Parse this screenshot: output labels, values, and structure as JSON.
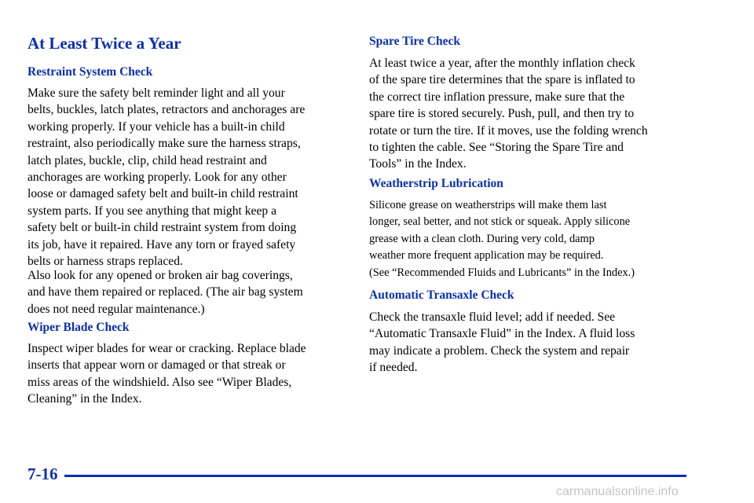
{
  "page_title": "At Least Twice a Year",
  "sections": {
    "restraint": {
      "heading": "Restraint System Check",
      "para1": [
        "Make sure the safety belt reminder light and all your",
        "belts, buckles, latch plates, retractors and anchorages are",
        "working properly. If your vehicle has a built-in child",
        "restraint, also periodically make sure the harness straps,",
        "latch plates, buckle, clip, child head restraint and",
        "anchorages are working properly. Look for any other",
        "loose or damaged safety belt and built-in child restraint",
        "system parts. If you see anything that might keep a",
        "safety belt or built-in child restraint system from doing",
        "its job, have it repaired. Have any torn or frayed safety",
        "belts or harness straps replaced."
      ],
      "para2": [
        "Also look for any opened or broken air bag coverings,",
        "and have them repaired or replaced. (The air bag system",
        "does not need regular maintenance.)"
      ]
    },
    "wiper": {
      "heading": "Wiper Blade Check",
      "para": [
        "Inspect wiper blades for wear or cracking. Replace blade",
        "inserts that appear worn or damaged or that streak or",
        "miss areas of the windshield. Also see “Wiper Blades,",
        "Cleaning” in the Index."
      ]
    },
    "spare_tire": {
      "heading": "Spare Tire Check",
      "para": [
        "At least twice a year, after the monthly inflation check",
        "of the spare tire determines that the spare is inflated to",
        "the correct tire inflation pressure, make sure that the",
        "spare tire is stored securely. Push, pull, and then try to",
        "rotate or turn the tire. If it moves, use the folding wrench",
        "to tighten the cable. See “Storing the Spare Tire and",
        "Tools” in the Index."
      ]
    },
    "weatherstrip": {
      "heading": "Weatherstrip Lubrication",
      "para": [
        "Silicone grease on weatherstrips will make them last",
        "longer, seal better, and not stick or squeak. Apply silicone",
        "grease with a clean cloth. During very cold, damp",
        "weather more frequent application may be required.",
        "(See “Recommended Fluids and Lubricants” in the Index.)"
      ]
    },
    "transaxle": {
      "heading": "Automatic Transaxle Check",
      "para": [
        "Check the transaxle fluid level; add if needed. See",
        "“Automatic Transaxle Fluid” in the Index. A fluid loss",
        "may indicate a problem. Check the system and repair",
        "if needed."
      ]
    }
  },
  "footer": {
    "page_number": "7-16",
    "watermark": "carmanualsonline.info"
  },
  "colors": {
    "heading_blue": "#0b2fb0",
    "body_text": "#000000",
    "watermark_gray": "#c4c4c4"
  }
}
